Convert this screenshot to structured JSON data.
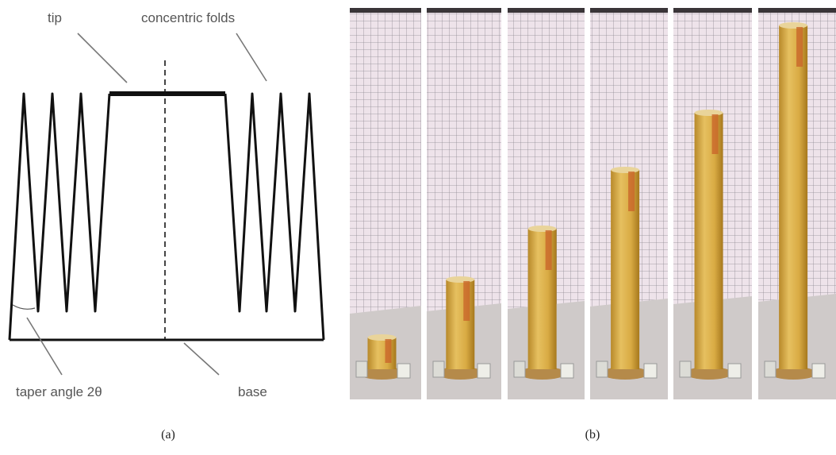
{
  "figure": {
    "panel_a": {
      "labels": {
        "tip": "tip",
        "folds": "concentric folds",
        "taper": "taper angle 2θ",
        "base": "base"
      },
      "caption": "(a)"
    },
    "panel_b": {
      "caption": "(b)"
    }
  }
}
